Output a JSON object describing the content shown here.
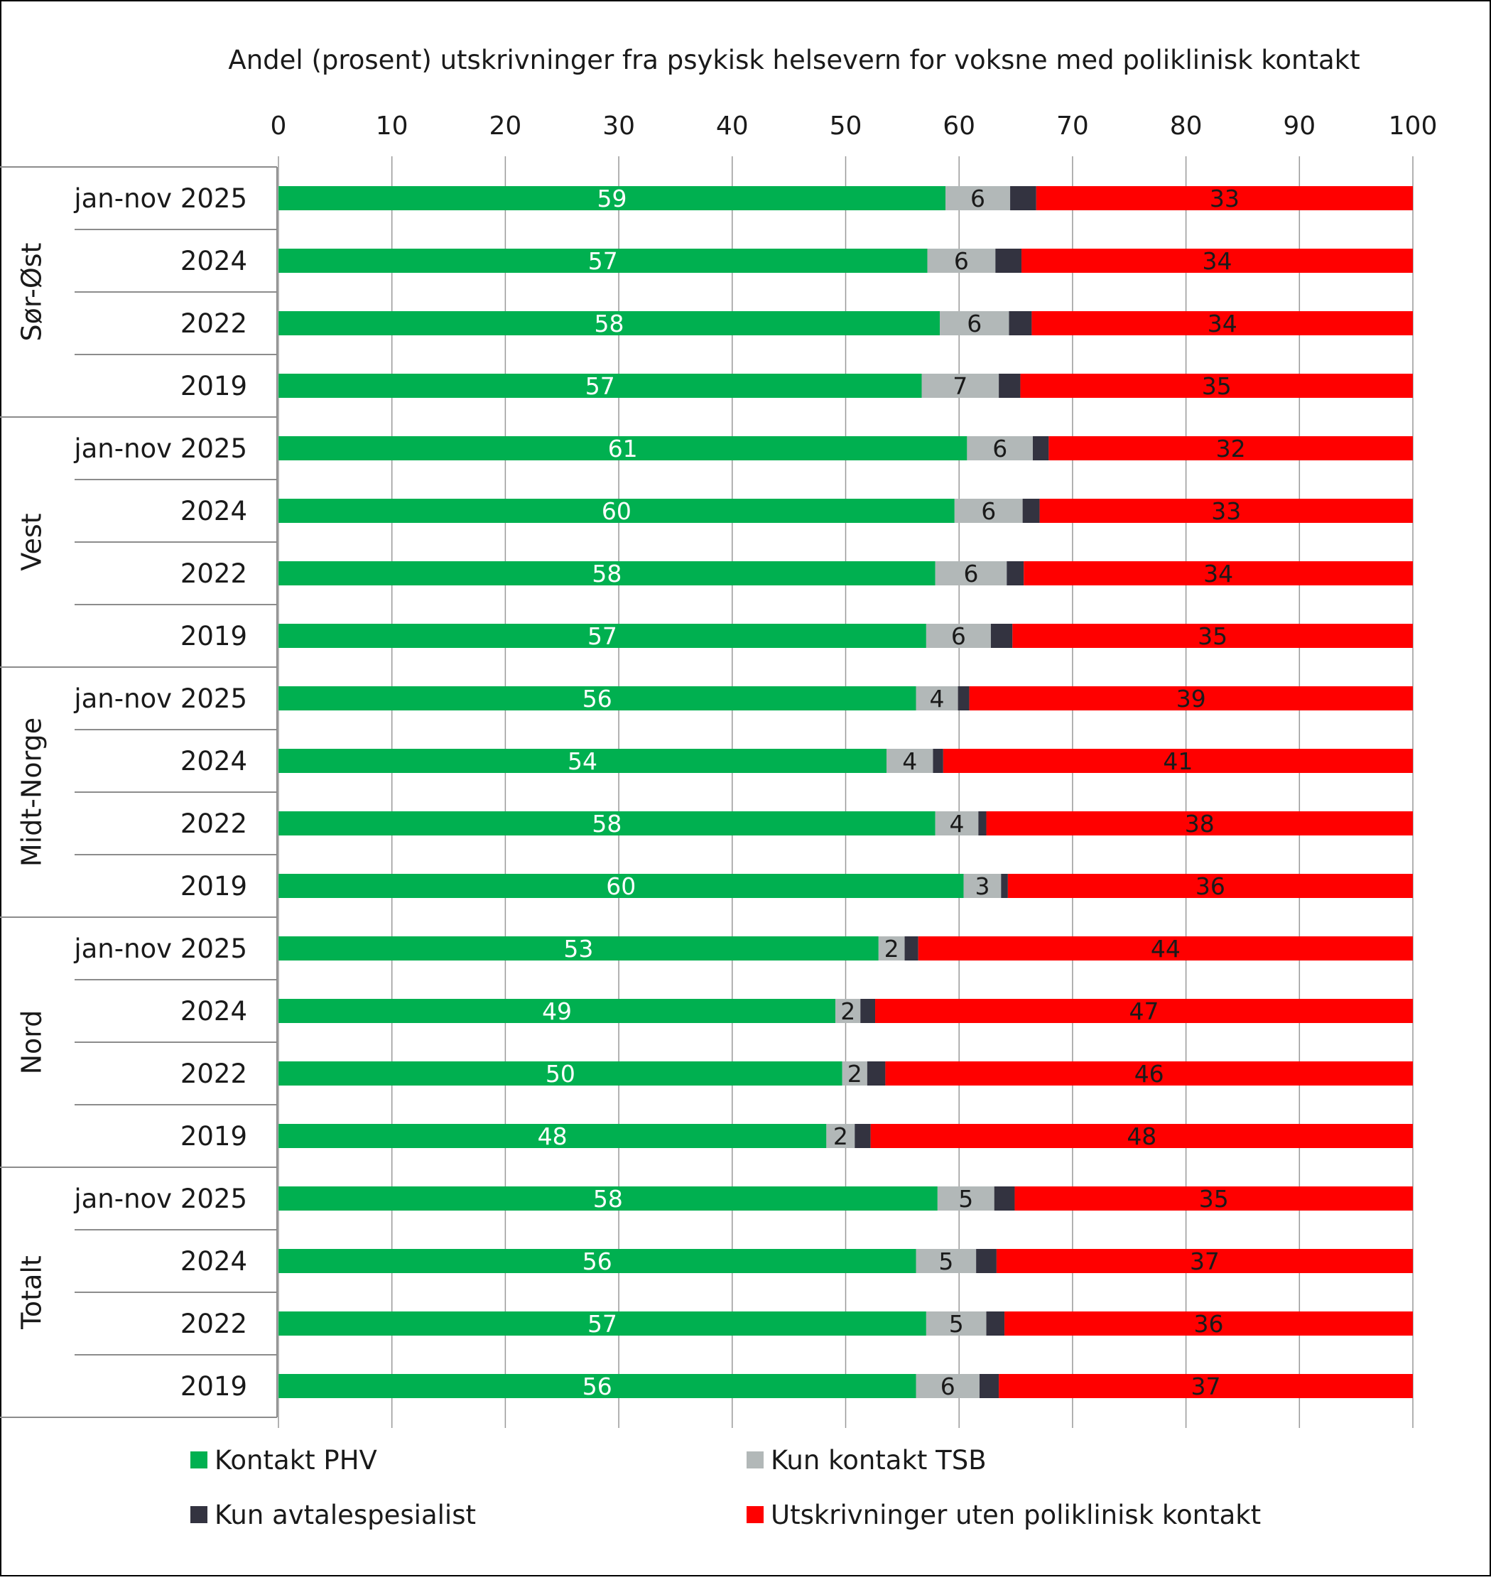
{
  "chart_data": {
    "type": "bar",
    "orientation": "horizontal",
    "stacked": true,
    "title": "Andel (prosent)  utskrivninger fra psykisk helsevern for voksne med poliklinisk kontakt",
    "xlim": [
      0,
      100
    ],
    "x_ticks": [
      "0",
      "10",
      "20",
      "30",
      "40",
      "50",
      "60",
      "70",
      "80",
      "90",
      "100"
    ],
    "grid": "vertical",
    "legend_position": "bottom",
    "groups": [
      {
        "name": "Sør-Øst",
        "categories": [
          "jan-nov 2025",
          "2024",
          "2022",
          "2019"
        ]
      },
      {
        "name": "Vest",
        "categories": [
          "jan-nov 2025",
          "2024",
          "2022",
          "2019"
        ]
      },
      {
        "name": "Midt-Norge",
        "categories": [
          "jan-nov 2025",
          "2024",
          "2022",
          "2019"
        ]
      },
      {
        "name": "Nord",
        "categories": [
          "jan-nov 2025",
          "2024",
          "2022",
          "2019"
        ]
      },
      {
        "name": "Totalt",
        "categories": [
          "jan-nov 2025",
          "2024",
          "2022",
          "2019"
        ]
      }
    ],
    "series": [
      {
        "name": "Kontakt PHV",
        "color": "#00b050",
        "label_color": "#ffffff",
        "values": [
          58.8,
          57.2,
          58.3,
          56.7,
          60.7,
          59.6,
          57.9,
          57.1,
          56.2,
          53.6,
          57.9,
          60.4,
          52.9,
          49.1,
          49.7,
          48.3,
          58.1,
          56.2,
          57.1,
          56.2
        ],
        "labels": [
          "59",
          "57",
          "58",
          "57",
          "61",
          "60",
          "58",
          "57",
          "56",
          "54",
          "58",
          "60",
          "53",
          "49",
          "50",
          "48",
          "58",
          "56",
          "57",
          "56"
        ]
      },
      {
        "name": "Kun kontakt TSB",
        "color": "#b2b8b8",
        "label_color": "#1a1a1a",
        "values": [
          5.7,
          6.0,
          6.1,
          6.8,
          5.8,
          6.0,
          6.3,
          5.7,
          3.7,
          4.1,
          3.8,
          3.3,
          2.3,
          2.2,
          2.2,
          2.5,
          5.0,
          5.3,
          5.3,
          5.6
        ],
        "labels": [
          "6",
          "6",
          "6",
          "7",
          "6",
          "6",
          "6",
          "6",
          "4",
          "4",
          "4",
          "3",
          "2",
          "2",
          "2",
          "2",
          "5",
          "5",
          "5",
          "6"
        ]
      },
      {
        "name": "Kun avtalespesialist",
        "color": "#333340",
        "label_color": "#ffffff",
        "values": [
          2.3,
          2.3,
          2.0,
          1.9,
          1.4,
          1.5,
          1.5,
          1.9,
          1.0,
          0.9,
          0.7,
          0.6,
          1.2,
          1.3,
          1.6,
          1.4,
          1.8,
          1.8,
          1.6,
          1.7
        ],
        "labels": [
          "",
          "",
          "",
          "",
          "",
          "",
          "",
          "",
          "",
          "",
          "",
          "",
          "",
          "",
          "",
          "",
          "",
          "",
          "",
          ""
        ]
      },
      {
        "name": "Utskrivninger uten poliklinisk kontakt",
        "color": "#ff0000",
        "label_color": "#1a1a1a",
        "values": [
          33.2,
          34.5,
          33.6,
          34.6,
          32.1,
          32.9,
          34.3,
          35.3,
          39.1,
          41.4,
          37.6,
          35.7,
          43.6,
          47.4,
          46.5,
          47.8,
          35.1,
          36.7,
          36.0,
          36.5
        ],
        "labels": [
          "33",
          "34",
          "34",
          "35",
          "32",
          "33",
          "34",
          "35",
          "39",
          "41",
          "38",
          "36",
          "44",
          "47",
          "46",
          "48",
          "35",
          "37",
          "36",
          "37"
        ]
      }
    ]
  }
}
